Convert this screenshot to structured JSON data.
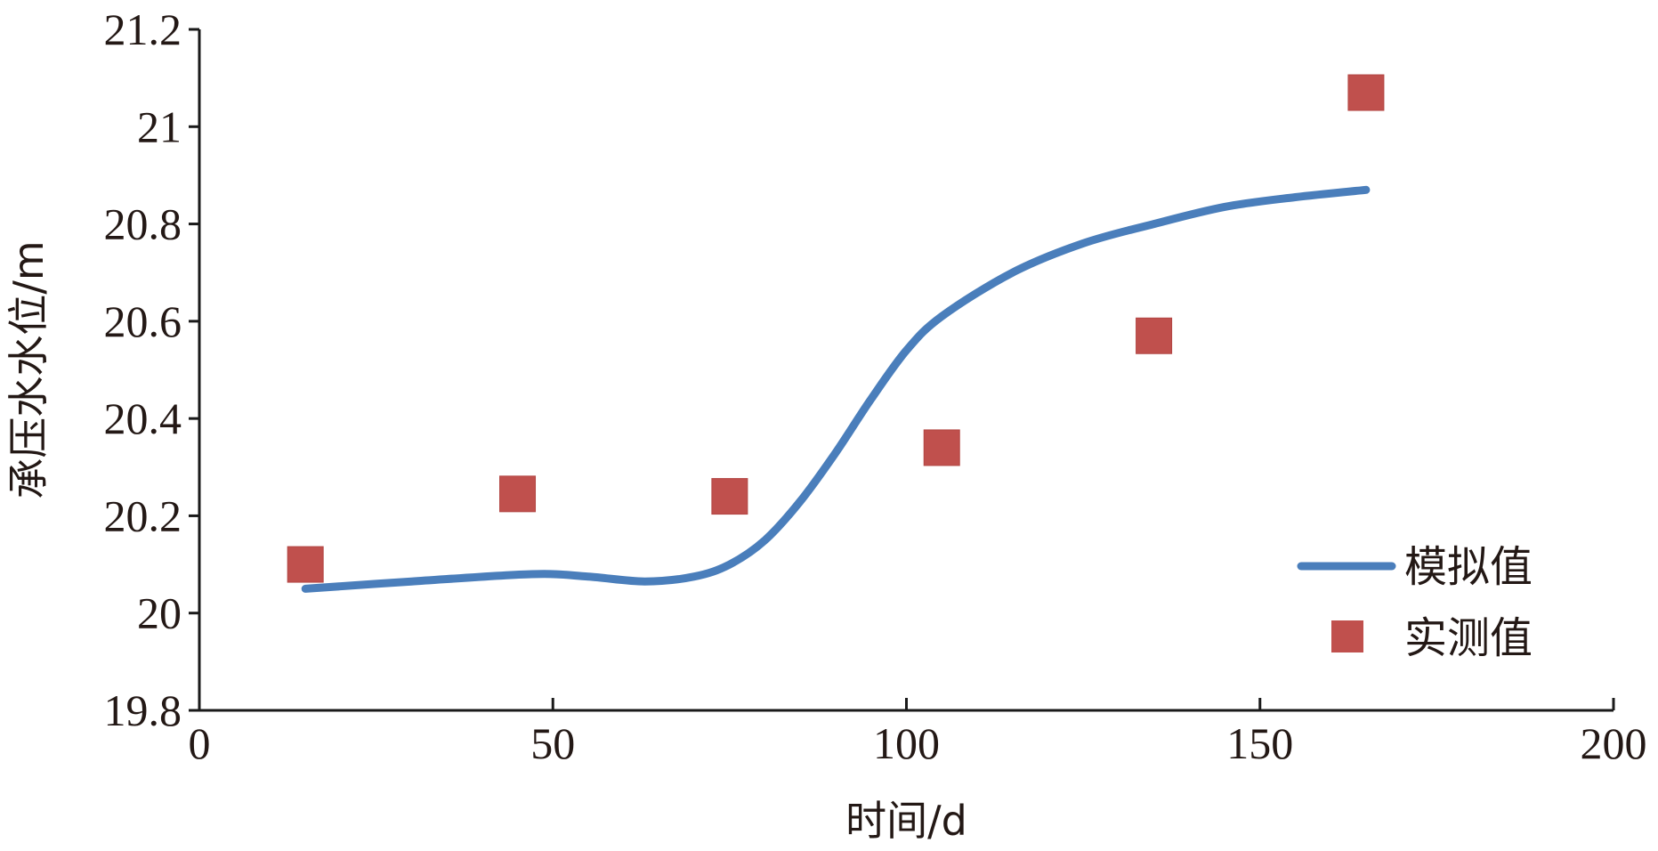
{
  "chart_data": {
    "type": "line",
    "title": "",
    "xlabel": "时间/d",
    "ylabel": "承压水水位/m",
    "xlim": [
      0,
      200
    ],
    "ylim": [
      19.8,
      21.2
    ],
    "x_ticks": [
      0,
      50,
      100,
      150,
      200
    ],
    "x_tick_labels": [
      "0",
      "50",
      "100",
      "150",
      "200"
    ],
    "y_ticks": [
      19.8,
      20,
      20.2,
      20.4,
      20.6,
      20.8,
      21,
      21.2
    ],
    "y_tick_labels": [
      "19.8",
      "20",
      "20.2",
      "20.4",
      "20.6",
      "20.8",
      "21",
      "21.2"
    ],
    "grid": false,
    "legend_position": "bottom-right",
    "series": [
      {
        "name": "模拟值",
        "type": "line",
        "color": "#4a7ebb",
        "x": [
          15,
          30,
          47,
          55,
          63,
          70,
          75,
          80,
          85,
          90,
          95,
          100,
          105,
          115,
          125,
          135,
          145,
          155,
          165
        ],
        "y": [
          20.05,
          20.065,
          20.08,
          20.075,
          20.065,
          20.075,
          20.1,
          20.15,
          20.23,
          20.33,
          20.44,
          20.54,
          20.61,
          20.7,
          20.76,
          20.8,
          20.835,
          20.855,
          20.87
        ]
      },
      {
        "name": "实测值",
        "type": "scatter",
        "marker": "square",
        "color": "#c0504d",
        "x": [
          15,
          45,
          75,
          105,
          135,
          165
        ],
        "y": [
          20.1,
          20.245,
          20.24,
          20.34,
          20.57,
          21.07
        ]
      }
    ]
  }
}
